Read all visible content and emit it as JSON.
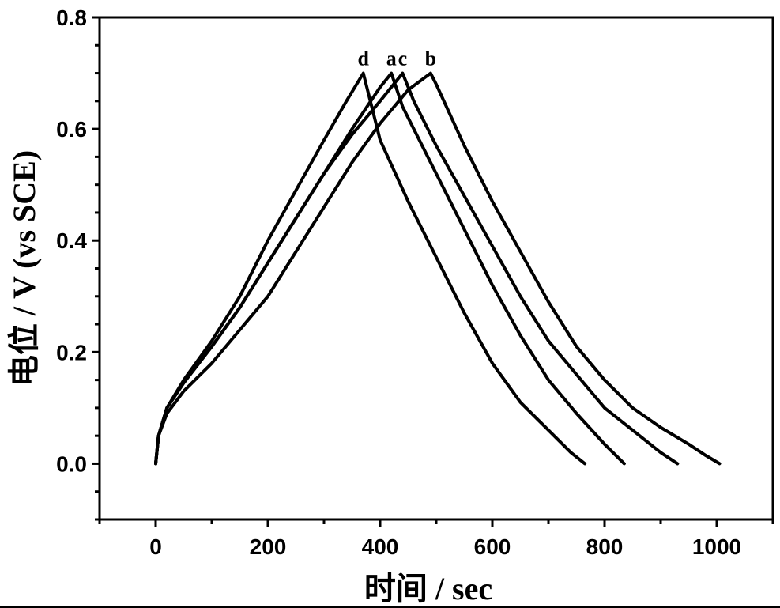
{
  "chart_data": {
    "type": "line",
    "title": "",
    "xlabel": "时间 / sec",
    "ylabel": "电位 / V (vs SCE)",
    "xlim": [
      -100,
      1100
    ],
    "ylim": [
      -0.1,
      0.8
    ],
    "xticks": [
      0,
      200,
      400,
      600,
      800,
      1000
    ],
    "xtick_labels": [
      "0",
      "200",
      "400",
      "600",
      "800",
      "1000"
    ],
    "yticks": [
      0.0,
      0.2,
      0.4,
      0.6,
      0.8
    ],
    "ytick_labels": [
      "0.0",
      "0.2",
      "0.4",
      "0.6",
      "0.8"
    ],
    "grid": false,
    "legend": "inline labels at curve peaks",
    "line_color": "#000000",
    "series": [
      {
        "name": "d",
        "x": [
          0,
          5,
          20,
          50,
          100,
          150,
          200,
          250,
          300,
          340,
          370,
          385,
          400,
          450,
          500,
          550,
          600,
          650,
          700,
          740,
          765
        ],
        "y": [
          0.0,
          0.05,
          0.1,
          0.15,
          0.22,
          0.3,
          0.4,
          0.49,
          0.58,
          0.65,
          0.7,
          0.64,
          0.58,
          0.47,
          0.37,
          0.27,
          0.18,
          0.11,
          0.06,
          0.02,
          0.0
        ]
      },
      {
        "name": "a",
        "x": [
          0,
          5,
          20,
          50,
          100,
          150,
          200,
          250,
          300,
          350,
          400,
          420,
          440,
          500,
          550,
          600,
          650,
          700,
          750,
          800,
          835
        ],
        "y": [
          0.0,
          0.05,
          0.1,
          0.145,
          0.21,
          0.28,
          0.36,
          0.44,
          0.52,
          0.6,
          0.675,
          0.7,
          0.64,
          0.52,
          0.42,
          0.32,
          0.23,
          0.15,
          0.09,
          0.035,
          0.0
        ]
      },
      {
        "name": "c",
        "x": [
          0,
          5,
          20,
          50,
          100,
          150,
          200,
          250,
          300,
          350,
          400,
          440,
          460,
          500,
          550,
          600,
          650,
          700,
          750,
          800,
          850,
          900,
          930
        ],
        "y": [
          0.0,
          0.05,
          0.1,
          0.145,
          0.21,
          0.28,
          0.36,
          0.44,
          0.52,
          0.59,
          0.65,
          0.7,
          0.65,
          0.57,
          0.48,
          0.39,
          0.3,
          0.22,
          0.16,
          0.1,
          0.06,
          0.02,
          0.0
        ]
      },
      {
        "name": "b",
        "x": [
          0,
          5,
          20,
          50,
          100,
          150,
          200,
          250,
          300,
          350,
          400,
          450,
          490,
          500,
          550,
          600,
          650,
          700,
          750,
          800,
          850,
          900,
          950,
          980,
          1005
        ],
        "y": [
          0.0,
          0.05,
          0.09,
          0.13,
          0.18,
          0.24,
          0.3,
          0.38,
          0.46,
          0.54,
          0.61,
          0.67,
          0.7,
          0.68,
          0.57,
          0.47,
          0.38,
          0.29,
          0.21,
          0.15,
          0.1,
          0.065,
          0.035,
          0.015,
          0.0
        ]
      }
    ]
  }
}
